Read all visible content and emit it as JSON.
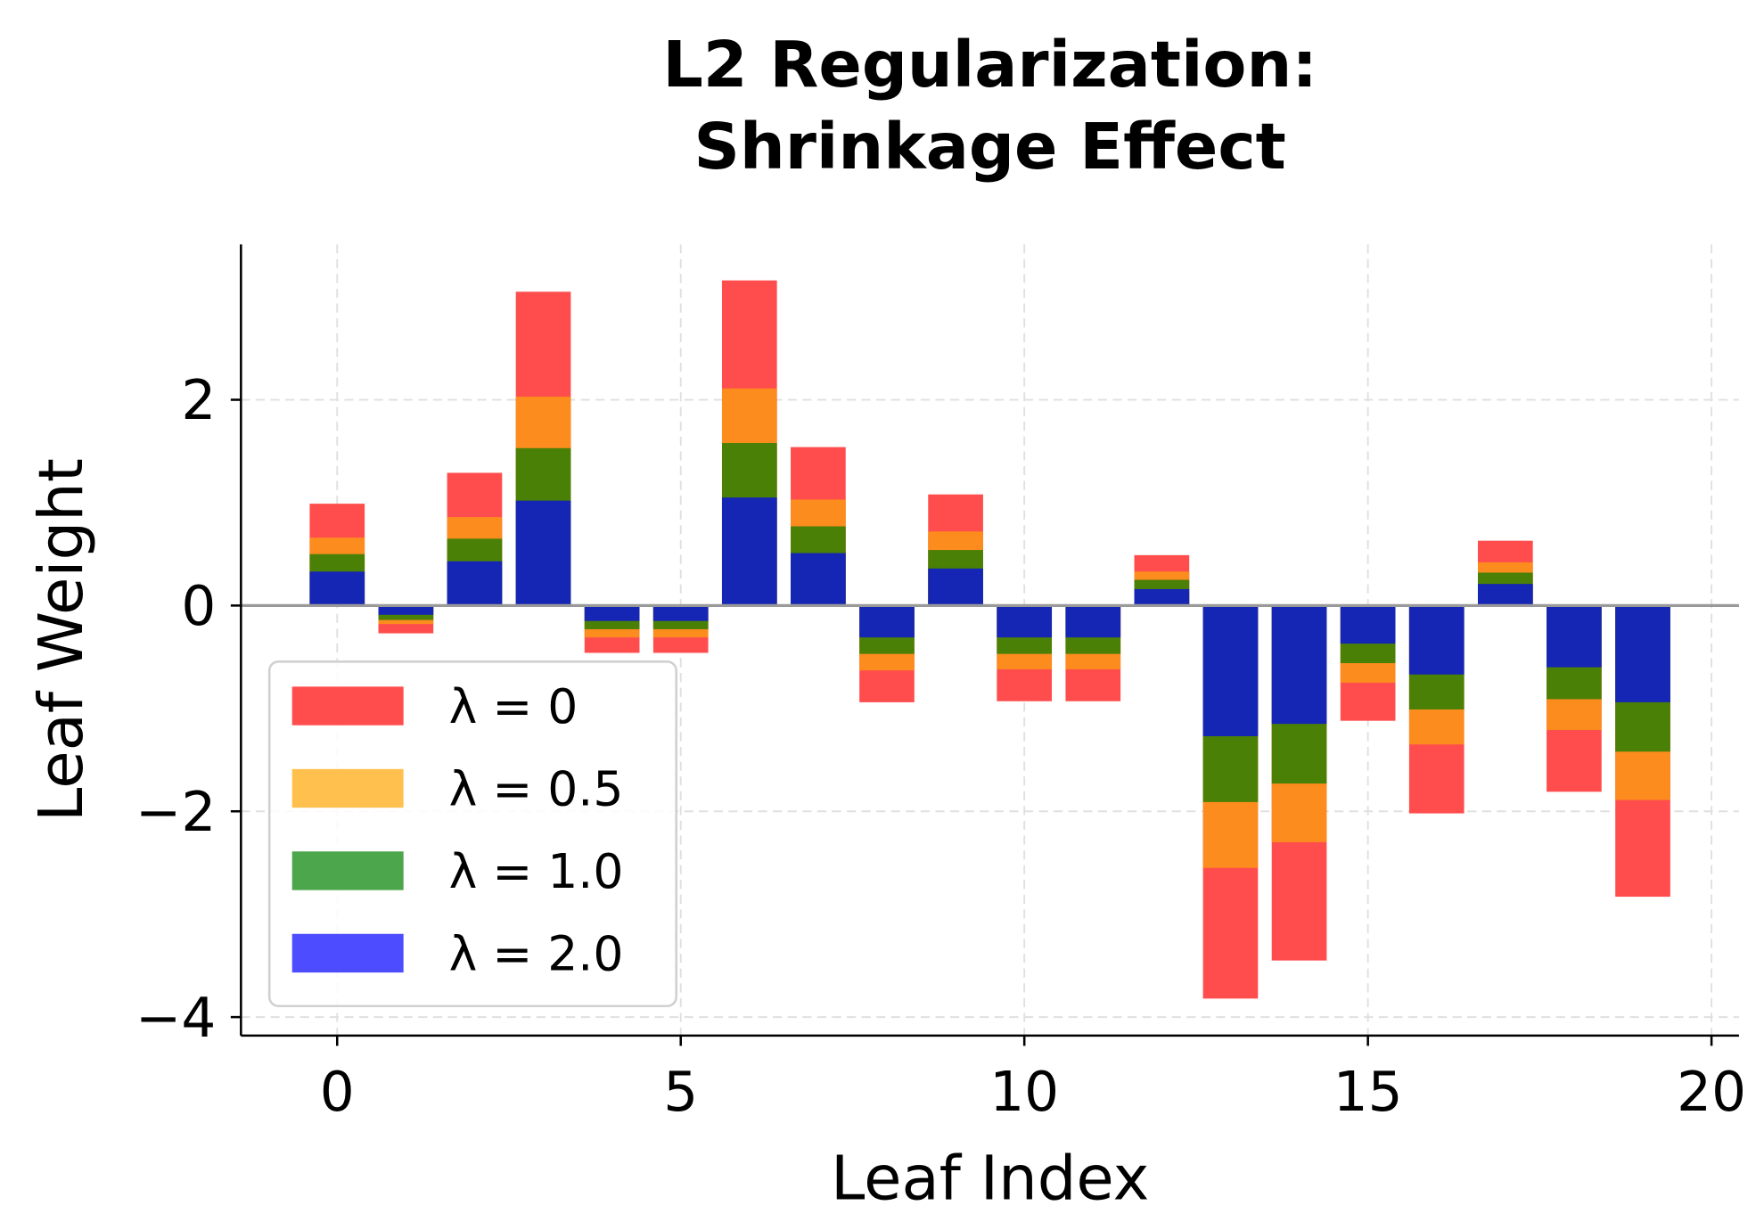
{
  "chart_data": {
    "type": "bar",
    "title": "L2 Regularization:\nShrinkage Effect",
    "title_lines": [
      "L2 Regularization:",
      "Shrinkage Effect"
    ],
    "xlabel": "Leaf Index",
    "ylabel": "Leaf Weight",
    "x": [
      0,
      1,
      2,
      3,
      4,
      5,
      6,
      7,
      8,
      9,
      10,
      11,
      12,
      13,
      14,
      15,
      16,
      17,
      18,
      19
    ],
    "xlim": [
      -1.4,
      20.4
    ],
    "ylim": [
      -4.18,
      3.51
    ],
    "xticks": [
      0,
      5,
      10,
      15,
      20
    ],
    "yticks": [
      -4,
      -2,
      0,
      2
    ],
    "ytick_labels": [
      "−4",
      "−2",
      "0",
      "2"
    ],
    "grid": true,
    "legend_position": "lower-left",
    "series": [
      {
        "name": "λ = 0",
        "legend_color": "#ff4d4d",
        "color": "#ff4d4d",
        "values": [
          0.99,
          -0.27,
          1.29,
          3.05,
          -0.46,
          -0.46,
          3.16,
          1.54,
          -0.94,
          1.08,
          -0.93,
          -0.93,
          0.49,
          -3.82,
          -3.45,
          -1.12,
          -2.02,
          0.63,
          -1.81,
          -2.83
        ]
      },
      {
        "name": "λ = 0.5",
        "legend_color": "#ffc04d",
        "color": "#fd8c1e",
        "values": [
          0.66,
          -0.18,
          0.86,
          2.03,
          -0.31,
          -0.31,
          2.11,
          1.03,
          -0.63,
          0.72,
          -0.62,
          -0.62,
          0.33,
          -2.55,
          -2.3,
          -0.75,
          -1.35,
          0.42,
          -1.21,
          -1.89
        ]
      },
      {
        "name": "λ = 1.0",
        "legend_color": "#4ca64c",
        "color": "#4a8006",
        "values": [
          0.5,
          -0.14,
          0.65,
          1.53,
          -0.23,
          -0.23,
          1.58,
          0.77,
          -0.47,
          0.54,
          -0.47,
          -0.47,
          0.25,
          -1.91,
          -1.73,
          -0.56,
          -1.01,
          0.32,
          -0.91,
          -1.42
        ]
      },
      {
        "name": "λ = 2.0",
        "legend_color": "#4d4dff",
        "color": "#1525b4",
        "values": [
          0.33,
          -0.09,
          0.43,
          1.02,
          -0.15,
          -0.15,
          1.05,
          0.51,
          -0.31,
          0.36,
          -0.31,
          -0.31,
          0.16,
          -1.27,
          -1.15,
          -0.37,
          -0.67,
          0.21,
          -0.6,
          -0.94
        ]
      }
    ]
  }
}
